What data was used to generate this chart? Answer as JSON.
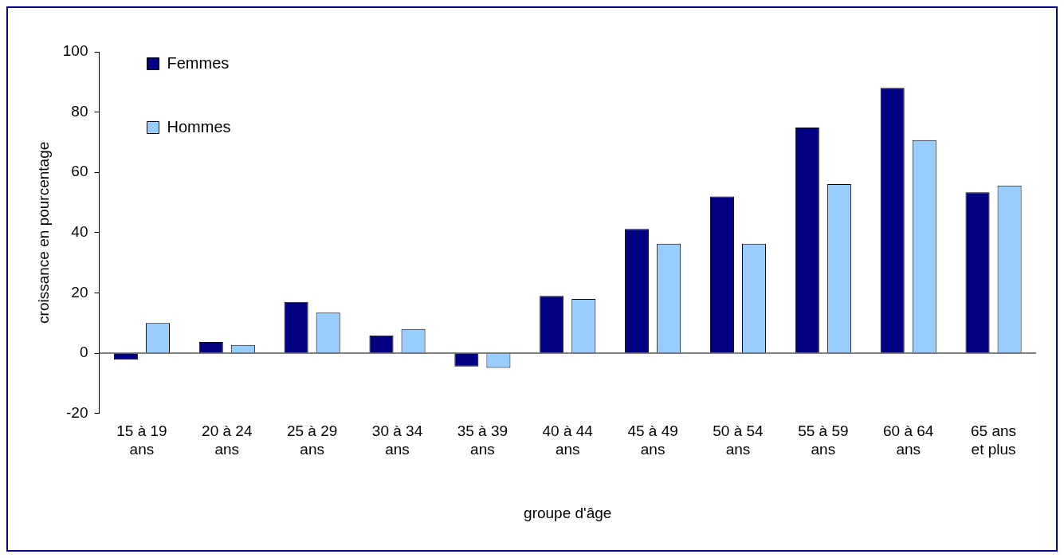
{
  "chart_data": {
    "type": "bar",
    "xlabel": "groupe d'âge",
    "ylabel": "croissance en pourcentage",
    "categories": [
      "15 à 19 ans",
      "20 à 24 ans",
      "25 à 29 ans",
      "30 à 34 ans",
      "35 à 39 ans",
      "40 à 44 ans",
      "45 à 49 ans",
      "50 à 54 ans",
      "55 à 59 ans",
      "60 à 64 ans",
      "65 ans et plus"
    ],
    "series": [
      {
        "name": "Femmes",
        "color": "#000080",
        "values": [
          -2.2,
          3.7,
          17,
          5.9,
          -4.4,
          19,
          41.2,
          52,
          74.9,
          88,
          53.4
        ]
      },
      {
        "name": "Hommes",
        "color": "#99ccff",
        "values": [
          10,
          2.7,
          13.4,
          8,
          -4.9,
          18,
          36.3,
          36.3,
          56.1,
          70.7,
          55.6
        ]
      }
    ],
    "ylim": [
      -20,
      100
    ],
    "yticks": [
      -20,
      0,
      20,
      40,
      60,
      80,
      100
    ],
    "grid": false,
    "legend": "top left",
    "ref_lines": [
      {
        "axis": "y",
        "value": 0,
        "color": "#000000"
      }
    ]
  }
}
